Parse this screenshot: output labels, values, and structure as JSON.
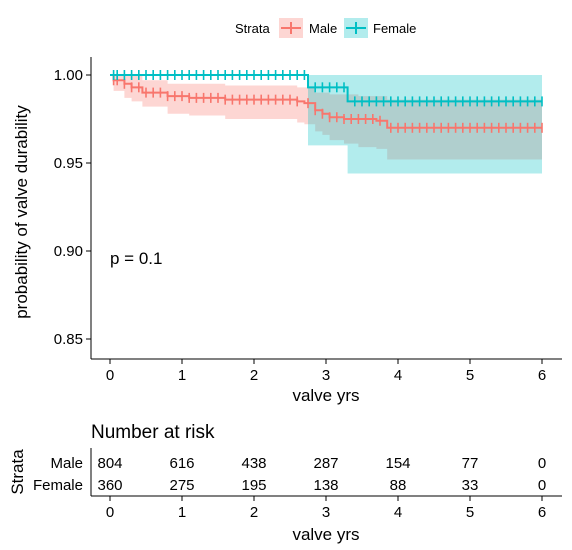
{
  "colors": {
    "male": "#F8766D",
    "female": "#00BFC4",
    "male_band": "#F8766D",
    "female_band": "#00BFC4"
  },
  "chart_data": {
    "type": "line",
    "subtype": "kaplan-meier survival curve with confidence bands",
    "xlabel": "valve yrs",
    "ylabel": "probability of valve durability",
    "xlim": [
      -0.1,
      6.3
    ],
    "ylim": [
      0.84,
      1.01
    ],
    "x_ticks": [
      0,
      1,
      2,
      3,
      4,
      5,
      6
    ],
    "y_ticks": [
      0.85,
      0.9,
      0.95,
      1.0
    ],
    "y_tick_labels": [
      "0.85",
      "0.90",
      "0.95",
      "1.00"
    ],
    "grid": false,
    "legend": {
      "title": "Strata",
      "placement": "top",
      "entries": [
        "Male",
        "Female"
      ]
    },
    "annotation": "p = 0.1",
    "series": [
      {
        "name": "Male",
        "color": "#F8766D",
        "steps": [
          [
            0,
            1.0
          ],
          [
            0.05,
            0.997
          ],
          [
            0.2,
            0.995
          ],
          [
            0.3,
            0.993
          ],
          [
            0.45,
            0.99
          ],
          [
            0.8,
            0.988
          ],
          [
            1.1,
            0.987
          ],
          [
            1.3,
            0.987
          ],
          [
            1.6,
            0.986
          ],
          [
            2.2,
            0.986
          ],
          [
            2.6,
            0.985
          ],
          [
            2.7,
            0.984
          ],
          [
            2.85,
            0.98
          ],
          [
            2.95,
            0.978
          ],
          [
            3.05,
            0.976
          ],
          [
            3.25,
            0.975
          ],
          [
            3.45,
            0.975
          ],
          [
            3.7,
            0.974
          ],
          [
            3.85,
            0.97
          ],
          [
            6.0,
            0.97
          ]
        ],
        "ci_upper": [
          [
            0,
            1.0
          ],
          [
            0.05,
            1.0
          ],
          [
            0.2,
            1.0
          ],
          [
            0.45,
            0.997
          ],
          [
            0.8,
            0.995
          ],
          [
            1.1,
            0.995
          ],
          [
            1.6,
            0.994
          ],
          [
            2.6,
            0.993
          ],
          [
            2.7,
            0.993
          ],
          [
            2.85,
            0.99
          ],
          [
            3.05,
            0.989
          ],
          [
            3.45,
            0.988
          ],
          [
            3.85,
            0.986
          ],
          [
            6.0,
            0.986
          ]
        ],
        "ci_lower": [
          [
            0,
            1.0
          ],
          [
            0.05,
            0.991
          ],
          [
            0.2,
            0.987
          ],
          [
            0.3,
            0.985
          ],
          [
            0.45,
            0.982
          ],
          [
            0.8,
            0.978
          ],
          [
            1.1,
            0.977
          ],
          [
            1.6,
            0.975
          ],
          [
            2.2,
            0.975
          ],
          [
            2.6,
            0.973
          ],
          [
            2.7,
            0.972
          ],
          [
            2.85,
            0.968
          ],
          [
            2.95,
            0.966
          ],
          [
            3.05,
            0.963
          ],
          [
            3.25,
            0.961
          ],
          [
            3.45,
            0.959
          ],
          [
            3.7,
            0.958
          ],
          [
            3.85,
            0.952
          ],
          [
            6.0,
            0.952
          ]
        ],
        "censor_x": [
          0.05,
          0.1,
          0.2,
          0.3,
          0.4,
          0.5,
          0.6,
          0.7,
          0.8,
          0.9,
          1.0,
          1.1,
          1.2,
          1.3,
          1.4,
          1.5,
          1.6,
          1.7,
          1.8,
          1.9,
          2.0,
          2.1,
          2.2,
          2.3,
          2.4,
          2.5,
          2.6,
          2.75,
          2.85,
          2.95,
          3.05,
          3.15,
          3.25,
          3.35,
          3.45,
          3.55,
          3.65,
          3.75,
          3.9,
          4.0,
          4.1,
          4.2,
          4.3,
          4.4,
          4.5,
          4.6,
          4.7,
          4.8,
          4.9,
          5.0,
          5.1,
          5.2,
          5.3,
          5.4,
          5.5,
          5.6,
          5.7,
          5.8,
          5.9,
          6.0
        ]
      },
      {
        "name": "Female",
        "color": "#00BFC4",
        "steps": [
          [
            0,
            1.0
          ],
          [
            2.75,
            0.993
          ],
          [
            3.3,
            0.985
          ],
          [
            6.0,
            0.985
          ]
        ],
        "ci_upper": [
          [
            0,
            1.0
          ],
          [
            6.0,
            1.0
          ]
        ],
        "ci_lower": [
          [
            0,
            1.0
          ],
          [
            2.75,
            0.977
          ],
          [
            3.3,
            0.968
          ],
          [
            6.0,
            0.968
          ]
        ],
        "ci_lower_overrides": [
          [
            2.75,
            0.96
          ],
          [
            3.3,
            0.944
          ],
          [
            6.0,
            0.944
          ]
        ],
        "censor_x": [
          0.05,
          0.1,
          0.2,
          0.3,
          0.4,
          0.5,
          0.6,
          0.7,
          0.8,
          0.9,
          1.0,
          1.1,
          1.2,
          1.3,
          1.4,
          1.5,
          1.6,
          1.7,
          1.8,
          1.9,
          2.0,
          2.1,
          2.2,
          2.3,
          2.4,
          2.5,
          2.6,
          2.7,
          2.85,
          2.95,
          3.05,
          3.15,
          3.25,
          3.4,
          3.5,
          3.6,
          3.7,
          3.8,
          3.9,
          4.0,
          4.1,
          4.2,
          4.3,
          4.4,
          4.5,
          4.6,
          4.7,
          4.8,
          4.9,
          5.0,
          5.1,
          5.2,
          5.3,
          5.4,
          5.5,
          5.6,
          5.7,
          5.8,
          5.9,
          6.0
        ]
      }
    ],
    "risk_table": {
      "title": "Number at risk",
      "ylabel": "Strata",
      "xlabel": "valve yrs",
      "times": [
        0,
        1,
        2,
        3,
        4,
        5,
        6
      ],
      "rows": [
        {
          "name": "Male",
          "values": [
            "804",
            "616",
            "438",
            "287",
            "154",
            "77",
            "0"
          ]
        },
        {
          "name": "Female",
          "values": [
            "360",
            "275",
            "195",
            "138",
            "88",
            "33",
            "0"
          ]
        }
      ]
    }
  }
}
